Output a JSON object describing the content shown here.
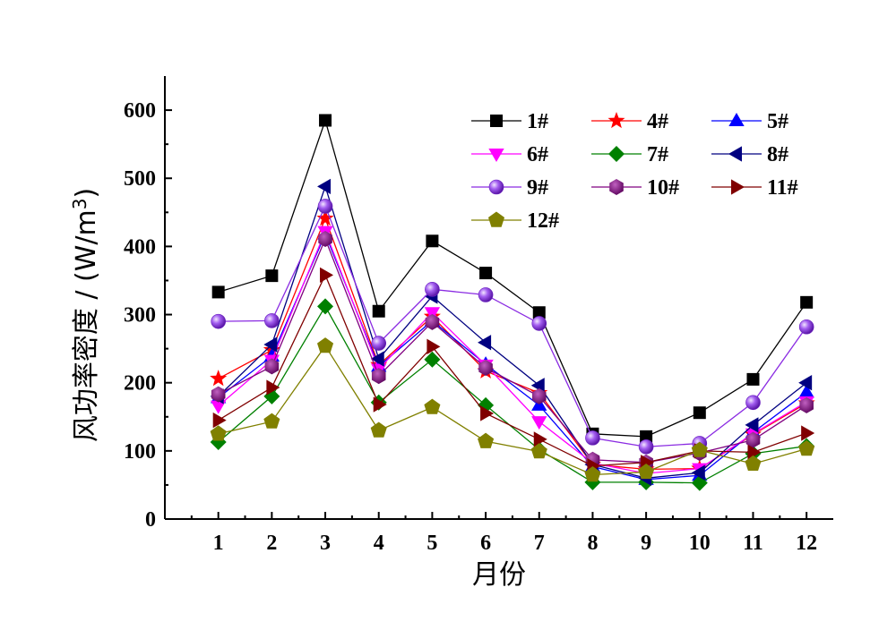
{
  "chart_data": {
    "type": "line",
    "xlabel": "月份",
    "ylabel": "风功率密度 / (W/m³)",
    "ylabel_main": "风功率密度 / (W/m",
    "ylabel_sup": "3",
    "ylabel_close": ")",
    "xlim": [
      0,
      12.5
    ],
    "ylim": [
      0,
      650
    ],
    "x": [
      1,
      2,
      3,
      4,
      5,
      6,
      7,
      8,
      9,
      10,
      11,
      12
    ],
    "xticks": [
      "1",
      "2",
      "3",
      "4",
      "5",
      "6",
      "7",
      "8",
      "9",
      "10",
      "11",
      "12"
    ],
    "yticks": [
      0,
      100,
      200,
      300,
      400,
      500,
      600
    ],
    "grid": false,
    "legend_position": "top-right",
    "series": [
      {
        "name": "1#",
        "marker": "square",
        "color": "#000000",
        "values": [
          333,
          357,
          585,
          305,
          408,
          361,
          303,
          125,
          121,
          156,
          205,
          318
        ]
      },
      {
        "name": "4#",
        "marker": "star",
        "color": "#ff0000",
        "values": [
          206,
          248,
          441,
          226,
          297,
          217,
          185,
          80,
          73,
          74,
          124,
          170
        ]
      },
      {
        "name": "5#",
        "marker": "triangle-up",
        "color": "#0000ff",
        "values": [
          178,
          239,
          418,
          224,
          291,
          227,
          167,
          77,
          58,
          64,
          127,
          186
        ]
      },
      {
        "name": "6#",
        "marker": "triangle-down",
        "color": "#ff00ff",
        "values": [
          166,
          233,
          422,
          220,
          303,
          226,
          143,
          82,
          67,
          74,
          125,
          172
        ]
      },
      {
        "name": "7#",
        "marker": "diamond",
        "color": "#008000",
        "values": [
          113,
          180,
          312,
          171,
          234,
          167,
          102,
          54,
          54,
          53,
          96,
          107
        ]
      },
      {
        "name": "8#",
        "marker": "triangle-left",
        "color": "#000080",
        "values": [
          180,
          256,
          488,
          235,
          327,
          259,
          196,
          80,
          60,
          68,
          138,
          200
        ]
      },
      {
        "name": "9#",
        "marker": "sphere",
        "color": "#8a2be2",
        "values": [
          290,
          291,
          459,
          258,
          337,
          329,
          287,
          119,
          106,
          111,
          171,
          282
        ]
      },
      {
        "name": "10#",
        "marker": "hexagon",
        "color": "#800080",
        "values": [
          183,
          224,
          411,
          210,
          289,
          222,
          180,
          87,
          83,
          97,
          116,
          167
        ]
      },
      {
        "name": "11#",
        "marker": "triangle-right",
        "color": "#800000",
        "values": [
          145,
          193,
          358,
          168,
          253,
          155,
          117,
          78,
          83,
          100,
          98,
          126
        ]
      },
      {
        "name": "12#",
        "marker": "pentagon",
        "color": "#808000",
        "values": [
          125,
          143,
          254,
          130,
          164,
          114,
          99,
          65,
          69,
          101,
          81,
          103
        ]
      }
    ]
  }
}
